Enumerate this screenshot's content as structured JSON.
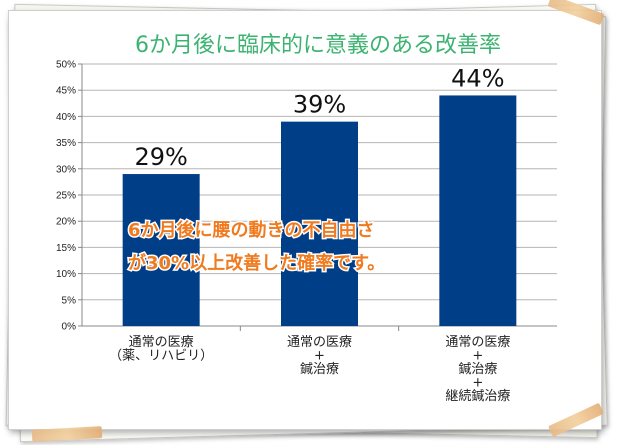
{
  "chart_data": {
    "type": "bar",
    "title": "6か月後に臨床的に意義のある改善率",
    "categories": [
      {
        "lines": [
          "通常の医療",
          "（薬、リハビリ）"
        ]
      },
      {
        "lines": [
          "通常の医療",
          "+",
          "鍼治療"
        ]
      },
      {
        "lines": [
          "通常の医療",
          "+",
          "鍼治療",
          "+",
          "継続鍼治療"
        ]
      }
    ],
    "values": [
      29,
      39,
      44
    ],
    "data_labels": [
      "29%",
      "39%",
      "44%"
    ],
    "yticks": [
      "0%",
      "5%",
      "10%",
      "15%",
      "20%",
      "25%",
      "30%",
      "35%",
      "40%",
      "45%",
      "50%"
    ],
    "ylim": [
      0,
      50
    ],
    "grid": true,
    "bar_color": "#003f87",
    "annotation": [
      "6か月後に腰の動きの不自由さ",
      "が30%以上改善した確率です。"
    ],
    "annotation_color": "#f07a1e",
    "title_color": "#3cb371"
  }
}
